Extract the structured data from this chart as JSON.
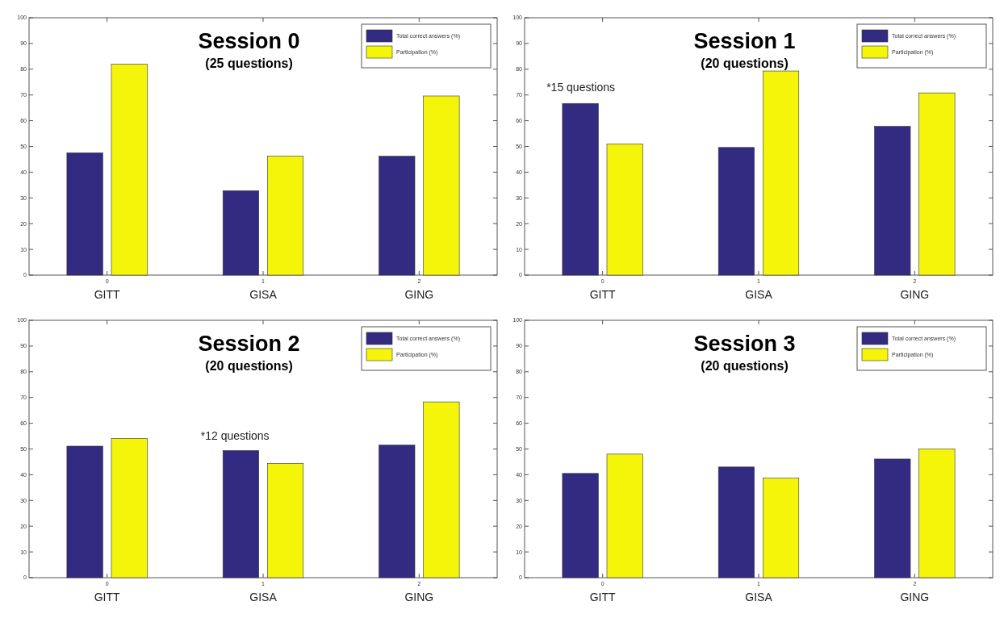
{
  "chart_data": [
    {
      "type": "bar",
      "title": "Session 0",
      "subtitle": "(25 questions)",
      "x": [
        0,
        1,
        2
      ],
      "xlim": [
        -0.5,
        2.5
      ],
      "xticks": [
        0,
        1,
        2
      ],
      "ylim": [
        0,
        100
      ],
      "yticks": [
        0,
        10,
        20,
        30,
        40,
        50,
        60,
        70,
        80,
        90,
        100
      ],
      "legend": "top right",
      "grid": false,
      "series": [
        {
          "name": "Total correct answers (%)",
          "color": "#332a82",
          "values": [
            47.5,
            32.8,
            46.2
          ]
        },
        {
          "name": "Participation (%)",
          "color": "#f5f50a",
          "values": [
            82,
            46.3,
            69.6
          ]
        }
      ],
      "annotations": [
        "GITT",
        "GISA",
        "GING"
      ]
    },
    {
      "type": "bar",
      "title": "Session 1",
      "subtitle": "(20 questions)",
      "x": [
        0,
        1,
        2
      ],
      "xlim": [
        -0.5,
        2.5
      ],
      "xticks": [
        0,
        1,
        2
      ],
      "ylim": [
        0,
        100
      ],
      "yticks": [
        0,
        10,
        20,
        30,
        40,
        50,
        60,
        70,
        80,
        90,
        100
      ],
      "legend": "top right",
      "grid": false,
      "series": [
        {
          "name": "Total correct answers (%)",
          "color": "#332a82",
          "values": [
            66.7,
            49.6,
            57.8
          ]
        },
        {
          "name": "Participation (%)",
          "color": "#f5f50a",
          "values": [
            51,
            79.3,
            70.8
          ]
        }
      ],
      "annotations": [
        "GITT",
        "GISA",
        "GING",
        "*15 questions"
      ]
    },
    {
      "type": "bar",
      "title": "Session 2",
      "subtitle": "(20 questions)",
      "x": [
        0,
        1,
        2
      ],
      "xlim": [
        -0.5,
        2.5
      ],
      "xticks": [
        0,
        1,
        2
      ],
      "ylim": [
        0,
        100
      ],
      "yticks": [
        0,
        10,
        20,
        30,
        40,
        50,
        60,
        70,
        80,
        90,
        100
      ],
      "legend": "top right",
      "grid": false,
      "series": [
        {
          "name": "Total correct answers (%)",
          "color": "#332a82",
          "values": [
            51.1,
            49.4,
            51.5
          ]
        },
        {
          "name": "Participation (%)",
          "color": "#f5f50a",
          "values": [
            54.1,
            44.4,
            68.3
          ]
        }
      ],
      "annotations": [
        "GITT",
        "GISA",
        "GING",
        "*12 questions"
      ]
    },
    {
      "type": "bar",
      "title": "Session 3",
      "subtitle": "(20 questions)",
      "x": [
        0,
        1,
        2
      ],
      "xlim": [
        -0.5,
        2.5
      ],
      "xticks": [
        0,
        1,
        2
      ],
      "ylim": [
        0,
        100
      ],
      "yticks": [
        0,
        10,
        20,
        30,
        40,
        50,
        60,
        70,
        80,
        90,
        100
      ],
      "legend": "top right",
      "grid": false,
      "series": [
        {
          "name": "Total correct answers (%)",
          "color": "#332a82",
          "values": [
            40.5,
            43,
            46.1
          ]
        },
        {
          "name": "Participation (%)",
          "color": "#f5f50a",
          "values": [
            48,
            38.7,
            50
          ]
        }
      ],
      "annotations": [
        "GITT",
        "GISA",
        "GING"
      ]
    }
  ]
}
